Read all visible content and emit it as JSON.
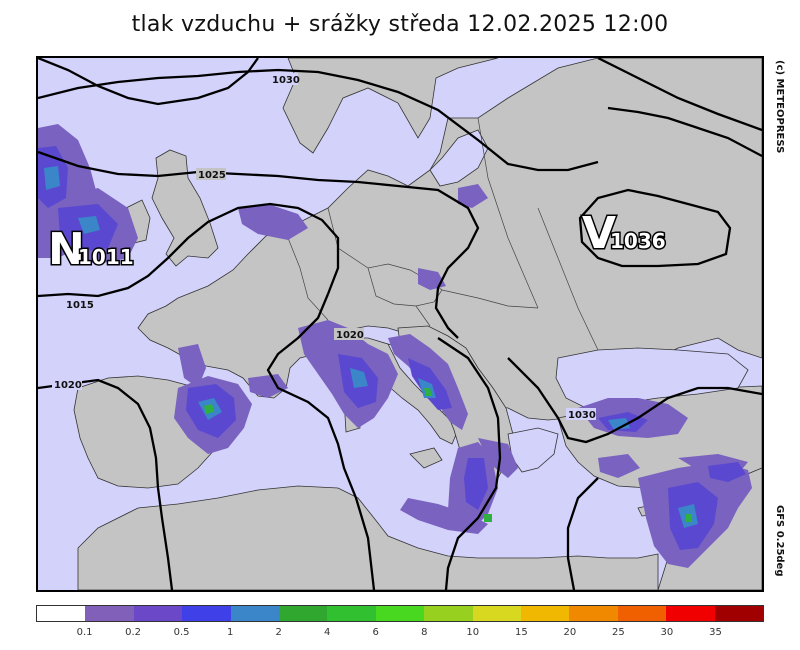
{
  "title": "tlak vzduchu + srážky  středa 12.02.2025 12:00",
  "copyright": "(c) METEOPRESS",
  "model": "GFS 0.25deg",
  "pressure_centers": [
    {
      "letter": "N",
      "value": "1011"
    },
    {
      "letter": "V",
      "value": "1036"
    }
  ],
  "isobar_labels": [
    "1030",
    "1025",
    "1015",
    "1020",
    "1020",
    "1030"
  ],
  "legend": {
    "ticks": [
      "0.1",
      "0.2",
      "0.5",
      "1",
      "2",
      "4",
      "6",
      "8",
      "10",
      "15",
      "20",
      "25",
      "30",
      "35"
    ],
    "colors": [
      "#ffffff",
      "#8060b8",
      "#6a48c8",
      "#4040e8",
      "#3a86c8",
      "#30a830",
      "#30c030",
      "#48d820",
      "#98d020",
      "#d8d820",
      "#f0b800",
      "#f08800",
      "#f06000",
      "#f00000",
      "#a00000"
    ]
  },
  "colors": {
    "sea": "#d2d2fa",
    "land": "#c4c4c4",
    "precip_light": "#7a62c0",
    "precip_medium": "#5a48d0",
    "precip_heavy": "#3a86c8",
    "precip_green": "#30b040"
  }
}
